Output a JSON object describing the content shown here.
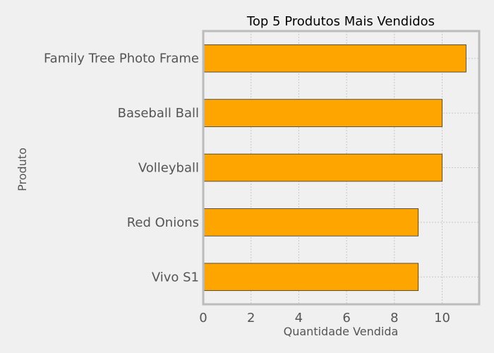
{
  "chart_data": {
    "type": "bar",
    "orientation": "horizontal",
    "title": "Top 5 Produtos Mais Vendidos",
    "xlabel": "Quantidade Vendida",
    "ylabel": "Produto",
    "categories": [
      "Family Tree Photo Frame",
      "Baseball Ball",
      "Volleyball",
      "Red Onions",
      "Vivo S1"
    ],
    "values": [
      11,
      10,
      10,
      9,
      9
    ],
    "xlim": [
      0,
      11.55
    ],
    "xticks": [
      0,
      2,
      4,
      6,
      8,
      10
    ],
    "grid": true,
    "bar_color": "#ffa500",
    "bar_edge_color": "#333333",
    "background_color": "#f0f0f0",
    "axes_edge_color": "#bcbcbc",
    "grid_color": "#c8c8c8",
    "text_color": "#555555"
  }
}
